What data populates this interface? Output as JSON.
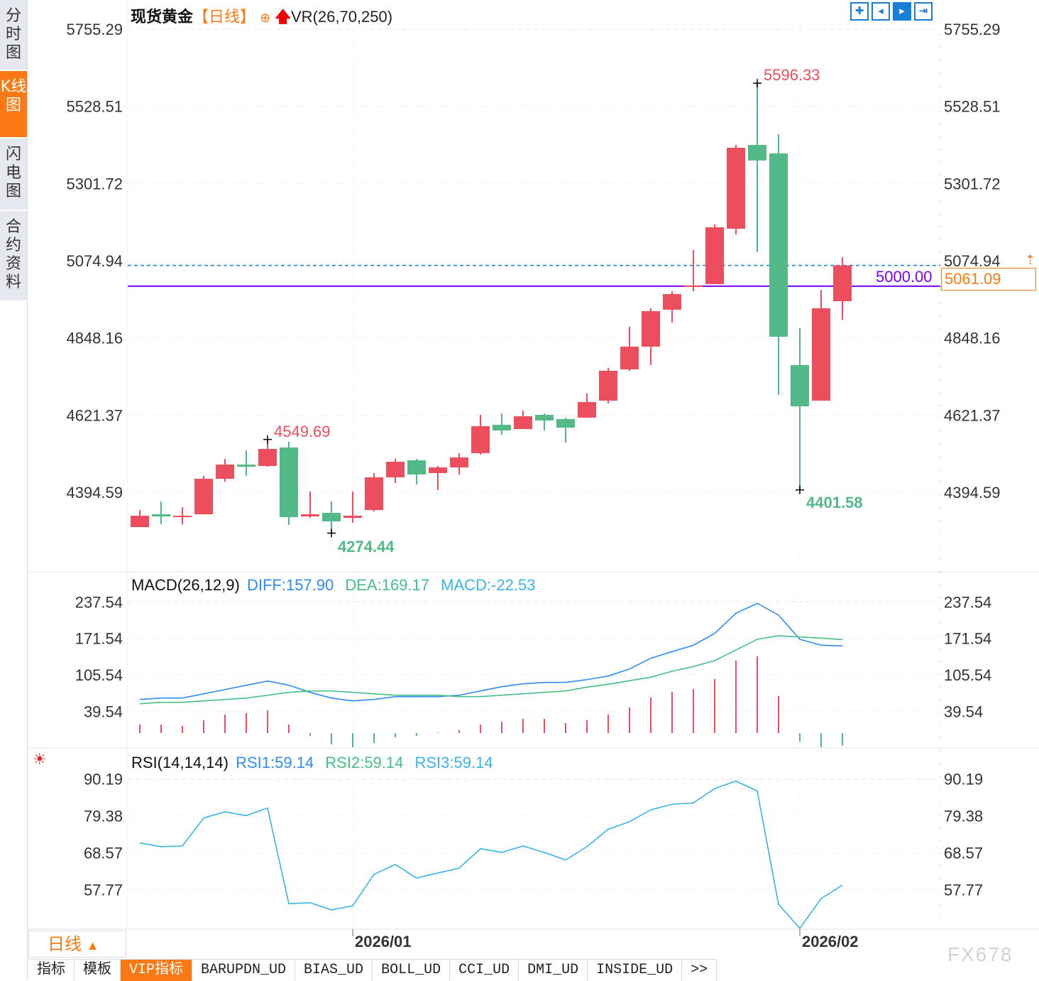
{
  "sidebar": {
    "tabs": [
      {
        "label": "分时图",
        "active": false
      },
      {
        "label": "K线图",
        "active": true
      },
      {
        "label": "闪电图",
        "active": false
      },
      {
        "label": "合约资料",
        "active": false
      }
    ]
  },
  "header": {
    "instrument": "现货黄金",
    "period_tag": "【日线】",
    "indicator": "VR(26,70,250)",
    "toolbar_icons": [
      "crosshair-icon",
      "zoom-left-icon",
      "zoom-right-icon",
      "jump-to-latest-icon"
    ]
  },
  "macd_header": {
    "name": "MACD(26,12,9)",
    "diff": "DIFF:157.90",
    "dea": "DEA:169.17",
    "macd": "MACD:-22.53"
  },
  "rsi_header": {
    "name": "RSI(14,14,14)",
    "rsi1": "RSI1:59.14",
    "rsi2": "RSI2:59.14",
    "rsi3": "RSI3:59.14",
    "icon": "settings-sun-icon"
  },
  "price_lines": {
    "line_5000": "5000.00",
    "last_price": "5061.09"
  },
  "annotations": {
    "high_1": "4549.69",
    "low_1": "4274.44",
    "high_2": "5596.33",
    "low_2": "4401.58"
  },
  "footer": {
    "period_button": "日线",
    "period_arrow": "▲",
    "dates": [
      "2026/01",
      "2026/02"
    ],
    "tabs": [
      "指标",
      "模板",
      "VIP指标",
      "BARUPDN_UD",
      "BIAS_UD",
      "BOLL_UD",
      "CCI_UD",
      "DMI_UD",
      "INSIDE_UD",
      ">>"
    ],
    "active_tab": "VIP指标",
    "watermark": "FX678"
  },
  "colors": {
    "up": "#eb4e5c",
    "down": "#52b987",
    "diff": "#2f8cf0",
    "dea": "#43c083",
    "rsi": "#3ab4e6",
    "accent": "#f97a14",
    "line_5000": "#8000ff",
    "last_price_line": "#1a7fd4"
  },
  "chart_data": [
    {
      "type": "candlestick",
      "title": "现货黄金 日线",
      "y_ticks": [
        "5755.29",
        "5528.51",
        "5301.72",
        "5074.94",
        "4848.16",
        "4621.37",
        "4394.59"
      ],
      "ylim": [
        4394.59,
        5755.29
      ],
      "x_labels": [
        {
          "label": "2026/01",
          "index": 10
        },
        {
          "label": "2026/02",
          "index": 31
        }
      ],
      "grid": true,
      "candles_ohlc": [
        [
          4292.3,
          4342.4,
          4292.3,
          4325.7
        ],
        [
          4329.9,
          4367.4,
          4300.6,
          4323.6
        ],
        [
          4323.6,
          4350.7,
          4300.6,
          4325.7
        ],
        [
          4329.9,
          4442.6,
          4329.9,
          4434.2
        ],
        [
          4434.2,
          4492.7,
          4425.9,
          4476.0
        ],
        [
          4476.0,
          4517.7,
          4442.6,
          4469.7
        ],
        [
          4471.8,
          4549.69,
          4469.7,
          4521.9
        ],
        [
          4526.1,
          4542.8,
          4298.5,
          4321.5
        ],
        [
          4323.6,
          4396.7,
          4319.4,
          4329.9
        ],
        [
          4334.0,
          4367.4,
          4274.44,
          4309.0
        ],
        [
          4319.4,
          4396.7,
          4304.8,
          4325.7
        ],
        [
          4342.4,
          4450.9,
          4338.2,
          4438.4
        ],
        [
          4438.4,
          4492.7,
          4421.7,
          4484.3
        ],
        [
          4488.5,
          4492.7,
          4417.5,
          4446.7
        ],
        [
          4450.9,
          4471.8,
          4400.8,
          4467.6
        ],
        [
          4467.6,
          4509.4,
          4446.7,
          4496.8
        ],
        [
          4509.4,
          4622.1,
          4505.2,
          4588.7
        ],
        [
          4592.8,
          4626.2,
          4563.6,
          4576.1
        ],
        [
          4580.3,
          4634.6,
          4580.3,
          4617.9
        ],
        [
          4622.1,
          4626.2,
          4576.1,
          4605.5
        ],
        [
          4609.6,
          4613.8,
          4540.2,
          4584.5
        ],
        [
          4613.8,
          4684.7,
          4613.8,
          4659.7
        ],
        [
          4663.8,
          4759.8,
          4655.5,
          4751.5
        ],
        [
          4755.6,
          4880.9,
          4751.5,
          4822.4
        ],
        [
          4822.4,
          4935.1,
          4768.1,
          4926.8
        ],
        [
          4931.0,
          4985.2,
          4893.4,
          4976.8
        ],
        [
          4997.7,
          5106.2,
          4985.2,
          5001.9
        ],
        [
          5006.1,
          5181.4,
          5006.1,
          5173.0
        ],
        [
          5168.8,
          5415.1,
          5152.2,
          5406.8
        ],
        [
          5415.1,
          5596.33,
          5100.0,
          5369.2
        ],
        [
          5390.1,
          5446.4,
          4680.5,
          4851.6
        ],
        [
          4768.1,
          4876.7,
          4401.58,
          4647.1
        ],
        [
          4663.8,
          4989.4,
          4663.8,
          4935.1
        ],
        [
          4956.0,
          5085.4,
          4901.7,
          5061.09
        ]
      ],
      "horizontal_lines": [
        {
          "value": 5000.0,
          "style": "solid"
        },
        {
          "value": 5061.09,
          "style": "dashed"
        }
      ]
    },
    {
      "type": "line+bar",
      "title": "MACD(26,12,9)",
      "y_ticks": [
        "237.54",
        "171.54",
        "105.54",
        "39.54"
      ],
      "series": [
        {
          "name": "DIFF",
          "values": [
            60.9,
            63.4,
            63.4,
            71.1,
            78.8,
            86.6,
            94.3,
            86.6,
            73.7,
            63.4,
            58.3,
            60.9,
            66.0,
            66.0,
            66.0,
            68.5,
            76.3,
            84.0,
            89.1,
            91.7,
            91.7,
            96.8,
            103.3,
            116.1,
            135.4,
            147.5,
            159.0,
            180.4,
            216.9,
            234.9,
            213.5,
            169.8,
            159.1,
            157.9
          ]
        },
        {
          "name": "DEA",
          "values": [
            53.1,
            55.7,
            55.7,
            58.3,
            60.9,
            63.4,
            68.5,
            73.7,
            76.3,
            76.3,
            73.7,
            71.1,
            68.5,
            68.5,
            68.5,
            66.0,
            66.0,
            68.5,
            71.1,
            73.7,
            76.3,
            83.2,
            88.3,
            94.8,
            101.2,
            111.9,
            120.5,
            131.2,
            150.5,
            169.8,
            176.2,
            174.0,
            171.9,
            169.17
          ]
        },
        {
          "name": "MACD",
          "values": [
            15.4,
            15.4,
            12.9,
            23.1,
            33.4,
            36.0,
            41.1,
            15.4,
            -5.0,
            -20.6,
            -25.7,
            -18.0,
            -7.7,
            -5.0,
            1.0,
            5.1,
            15.4,
            20.6,
            25.7,
            25.7,
            18.0,
            23.1,
            33.4,
            46.3,
            64.3,
            74.6,
            79.7,
            97.7,
            131.2,
            138.9,
            66.9,
            -15.4,
            -25.7,
            -22.53
          ]
        }
      ]
    },
    {
      "type": "line",
      "title": "RSI(14,14,14)",
      "y_ticks": [
        "90.19",
        "79.38",
        "68.57",
        "57.77"
      ],
      "series": [
        {
          "name": "RSI1",
          "values": [
            71.5,
            70.4,
            70.6,
            78.8,
            80.6,
            79.5,
            81.7,
            53.7,
            54.0,
            51.9,
            53.1,
            62.3,
            65.2,
            61.2,
            62.7,
            64.1,
            69.8,
            68.7,
            70.6,
            68.7,
            66.5,
            70.4,
            75.5,
            77.7,
            81.2,
            82.8,
            83.2,
            87.4,
            89.6,
            86.7,
            53.5,
            46.5,
            55.2,
            59.14
          ]
        }
      ]
    }
  ]
}
